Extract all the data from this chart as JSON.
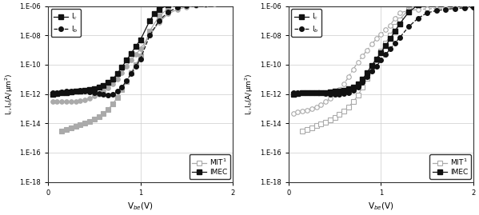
{
  "xlim": [
    0,
    2
  ],
  "yexp_min": -18,
  "yexp_max": -6,
  "dark": "#111111",
  "gray": "#aaaaaa",
  "bg": "#ffffff",
  "ytick_labels": [
    "1.E-18",
    "1.E-16",
    "1.E-14",
    "1.E-12",
    "1.E-10",
    "1.E-08",
    "1.E-06"
  ],
  "plot1": {
    "IMEC_Ic_x": [
      0.05,
      0.1,
      0.15,
      0.2,
      0.25,
      0.3,
      0.35,
      0.4,
      0.45,
      0.5,
      0.55,
      0.6,
      0.65,
      0.7,
      0.75,
      0.8,
      0.85,
      0.9,
      0.95,
      1.0,
      1.1,
      1.15,
      1.2,
      1.3,
      1.4,
      1.5,
      1.6,
      1.7,
      1.8,
      1.9,
      2.0
    ],
    "IMEC_Ic_y": [
      1e-12,
      1.1e-12,
      1.2e-12,
      1.3e-12,
      1.4e-12,
      1.5e-12,
      1.6e-12,
      1.8e-12,
      2e-12,
      2.2e-12,
      3e-12,
      4e-12,
      6e-12,
      1e-11,
      2.5e-11,
      7e-11,
      2e-10,
      6e-10,
      1.8e-09,
      5e-09,
      1e-07,
      3e-07,
      6e-07,
      1.2e-06,
      1.6e-06,
      2e-06,
      2.2e-06,
      2.4e-06,
      2.6e-06,
      2.8e-06,
      3e-06
    ],
    "IMEC_Ib_x": [
      0.05,
      0.1,
      0.15,
      0.2,
      0.25,
      0.3,
      0.35,
      0.4,
      0.45,
      0.5,
      0.55,
      0.6,
      0.65,
      0.7,
      0.75,
      0.8,
      0.85,
      0.9,
      0.95,
      1.0,
      1.1,
      1.2,
      1.3,
      1.4,
      1.5,
      1.6,
      1.7,
      1.8,
      1.9,
      2.0
    ],
    "IMEC_Ib_y": [
      1.2e-12,
      1.3e-12,
      1.4e-12,
      1.5e-12,
      1.5e-12,
      1.6e-12,
      1.7e-12,
      1.6e-12,
      1.4e-12,
      1.2e-12,
      1.1e-12,
      9e-13,
      8e-13,
      9e-13,
      1.5e-12,
      3e-12,
      8e-12,
      2.5e-11,
      8e-11,
      2.5e-10,
      1e-08,
      1e-07,
      4e-07,
      8e-07,
      1.1e-06,
      1.3e-06,
      1.4e-06,
      1.5e-06,
      1.6e-06,
      1.7e-06
    ],
    "MIT_Ic_x": [
      0.15,
      0.2,
      0.25,
      0.3,
      0.35,
      0.4,
      0.45,
      0.5,
      0.55,
      0.6,
      0.65,
      0.7,
      0.75,
      0.8,
      0.85,
      0.9,
      0.95,
      1.0,
      1.1,
      1.2,
      1.3,
      1.4,
      1.5,
      1.6,
      1.7,
      1.8,
      1.9,
      2.0
    ],
    "MIT_Ic_y": [
      3e-15,
      4e-15,
      5e-15,
      6e-15,
      8e-15,
      1e-14,
      1.4e-14,
      2e-14,
      3e-14,
      5e-14,
      9e-14,
      2e-13,
      6e-13,
      2e-12,
      7e-12,
      3e-11,
      1e-10,
      4e-10,
      2e-08,
      2e-07,
      7e-07,
      1.3e-06,
      1.8e-06,
      2.2e-06,
      2.5e-06,
      2.8e-06,
      3e-06,
      3.2e-06
    ],
    "MIT_Ib_x": [
      0.05,
      0.1,
      0.15,
      0.2,
      0.25,
      0.3,
      0.35,
      0.4,
      0.45,
      0.5,
      0.55,
      0.6,
      0.65,
      0.7,
      0.75,
      0.8,
      0.85,
      0.9,
      0.95,
      1.0,
      1.1,
      1.2,
      1.3,
      1.4,
      1.5,
      1.6,
      1.7,
      1.8,
      1.9,
      2.0
    ],
    "MIT_Ib_y": [
      3e-13,
      3e-13,
      3e-13,
      3e-13,
      3e-13,
      3.2e-13,
      3.5e-13,
      4e-13,
      5e-13,
      7e-13,
      1e-12,
      1.5e-12,
      2.5e-12,
      5e-12,
      1e-11,
      3e-11,
      8e-11,
      2e-10,
      5e-10,
      1.2e-09,
      1e-08,
      8e-08,
      3e-07,
      6e-07,
      9e-07,
      1.1e-06,
      1.2e-06,
      1.4e-06,
      1.5e-06,
      1.6e-06
    ]
  },
  "plot2": {
    "IMEC_Ic_x": [
      0.05,
      0.1,
      0.15,
      0.2,
      0.25,
      0.3,
      0.35,
      0.4,
      0.45,
      0.5,
      0.55,
      0.6,
      0.65,
      0.7,
      0.75,
      0.8,
      0.85,
      0.9,
      0.95,
      1.0,
      1.05,
      1.1,
      1.15,
      1.2,
      1.3,
      1.4,
      1.5,
      1.6,
      1.7,
      1.8,
      1.9,
      2.0
    ],
    "IMEC_Ic_y": [
      1e-12,
      1.1e-12,
      1.2e-12,
      1.2e-12,
      1.2e-12,
      1.2e-12,
      1.3e-12,
      1.3e-12,
      1.4e-12,
      1.5e-12,
      1.6e-12,
      1.8e-12,
      2.2e-12,
      3e-12,
      5e-12,
      1e-11,
      3e-11,
      9e-11,
      2.5e-10,
      7e-10,
      2e-09,
      6e-09,
      2e-08,
      6e-08,
      4e-07,
      1.2e-06,
      2.5e-06,
      3e-06,
      3.5e-06,
      4e-06,
      4.3e-06,
      4.5e-06
    ],
    "IMEC_Ib_x": [
      0.05,
      0.1,
      0.15,
      0.2,
      0.25,
      0.3,
      0.35,
      0.4,
      0.45,
      0.5,
      0.55,
      0.6,
      0.65,
      0.7,
      0.75,
      0.8,
      0.85,
      0.9,
      0.95,
      1.0,
      1.05,
      1.1,
      1.15,
      1.2,
      1.3,
      1.4,
      1.5,
      1.6,
      1.7,
      1.8,
      1.9,
      2.0
    ],
    "IMEC_Ib_y": [
      1.2e-12,
      1.2e-12,
      1.2e-12,
      1.2e-12,
      1.2e-12,
      1.2e-12,
      1.2e-12,
      1.1e-12,
      1e-12,
      1e-12,
      1e-12,
      1.1e-12,
      1.3e-12,
      1.8e-12,
      3e-12,
      6e-12,
      1.5e-11,
      3.5e-11,
      8e-11,
      2e-10,
      5e-10,
      1.2e-09,
      3e-09,
      7e-09,
      4e-08,
      1.5e-07,
      3.5e-07,
      5e-07,
      6e-07,
      7e-07,
      7.5e-07,
      8e-07
    ],
    "MIT_Ic_x": [
      0.15,
      0.2,
      0.25,
      0.3,
      0.35,
      0.4,
      0.45,
      0.5,
      0.55,
      0.6,
      0.65,
      0.7,
      0.75,
      0.8,
      0.85,
      0.9,
      0.95,
      1.0,
      1.05,
      1.1,
      1.15,
      1.2,
      1.3,
      1.4,
      1.5,
      1.6,
      1.7,
      1.8,
      1.9,
      2.0
    ],
    "MIT_Ic_y": [
      3e-15,
      4e-15,
      5e-15,
      7e-15,
      9e-15,
      1.2e-14,
      1.7e-14,
      2.5e-14,
      4e-14,
      7e-14,
      1.3e-13,
      3e-13,
      8e-13,
      3e-12,
      1.2e-11,
      5e-11,
      2e-10,
      8e-10,
      3e-09,
      1e-08,
      4e-08,
      1.2e-07,
      6e-07,
      1.5e-06,
      2.5e-06,
      3e-06,
      3.5e-06,
      3.8e-06,
      4e-06,
      4.2e-06
    ],
    "MIT_Ib_x": [
      0.05,
      0.1,
      0.15,
      0.2,
      0.25,
      0.3,
      0.35,
      0.4,
      0.45,
      0.5,
      0.55,
      0.6,
      0.65,
      0.7,
      0.75,
      0.8,
      0.85,
      0.9,
      0.95,
      1.0,
      1.05,
      1.1,
      1.15,
      1.2,
      1.3,
      1.4,
      1.5,
      1.6,
      1.7,
      1.8,
      1.9,
      2.0
    ],
    "MIT_Ib_y": [
      5e-14,
      6e-14,
      7e-14,
      8e-14,
      1e-13,
      1.3e-13,
      1.8e-13,
      3e-13,
      5e-13,
      9e-13,
      2e-12,
      5e-12,
      1.5e-11,
      5e-11,
      1.5e-10,
      4e-10,
      1e-09,
      2.5e-09,
      6e-09,
      1.2e-08,
      2.5e-08,
      5e-08,
      1.5e-07,
      3.5e-07,
      5e-07,
      6e-07,
      6.5e-07,
      7e-07,
      7.5e-07,
      8e-07,
      8.5e-07,
      9e-07
    ]
  }
}
